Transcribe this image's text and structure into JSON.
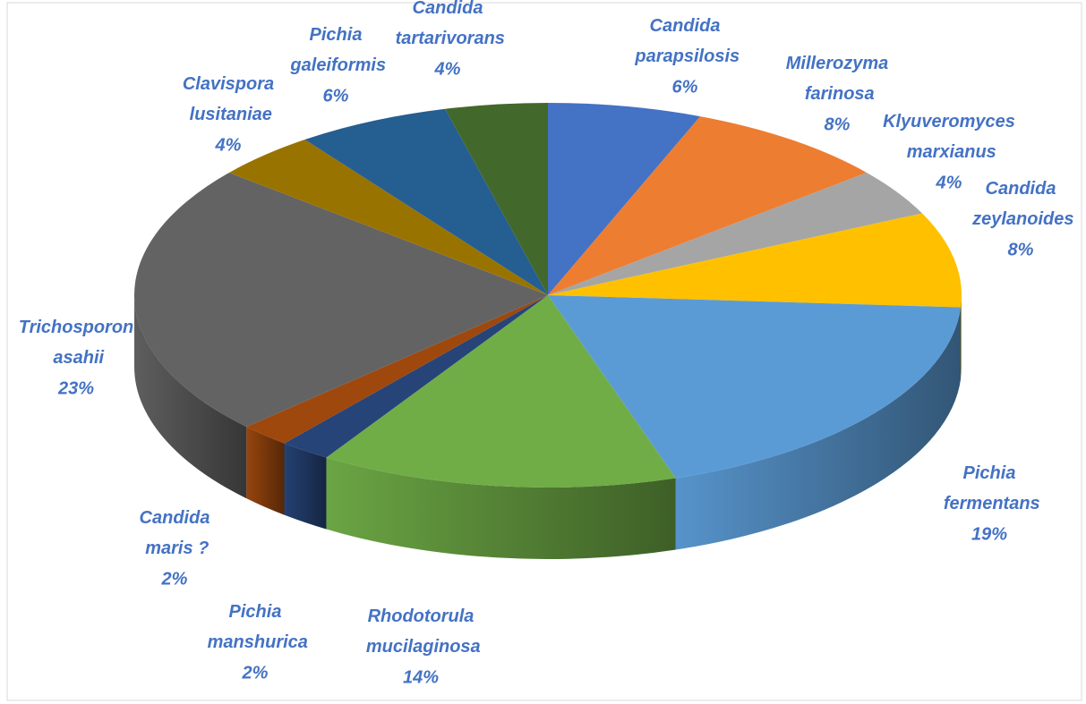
{
  "chart_data": {
    "type": "pie3d",
    "categories": [
      "Candida parapsilosis",
      "Millerozyma farinosa",
      "Klyuveromyces marxianus",
      "Candida zeylanoides",
      "Pichia fermentans",
      "Rhodotorula mucilaginosa",
      "Pichia manshurica",
      "Candida maris ?",
      "Trichosporon asahii",
      "Clavispora lusitaniae",
      "Pichia galeiformis",
      "Candida tartarivorans"
    ],
    "values": [
      6,
      8,
      4,
      8,
      19,
      14,
      2,
      2,
      23,
      4,
      6,
      4
    ],
    "value_labels": [
      "6%",
      "8%",
      "4%",
      "8%",
      "19%",
      "14%",
      "2%",
      "2%",
      "23%",
      "4%",
      "6%",
      "4%"
    ],
    "colors": [
      "#4472c4",
      "#ed7d31",
      "#a5a5a5",
      "#ffc000",
      "#5b9bd5",
      "#70ad47",
      "#264478",
      "#9e480e",
      "#636363",
      "#997300",
      "#255e91",
      "#43682b"
    ]
  }
}
